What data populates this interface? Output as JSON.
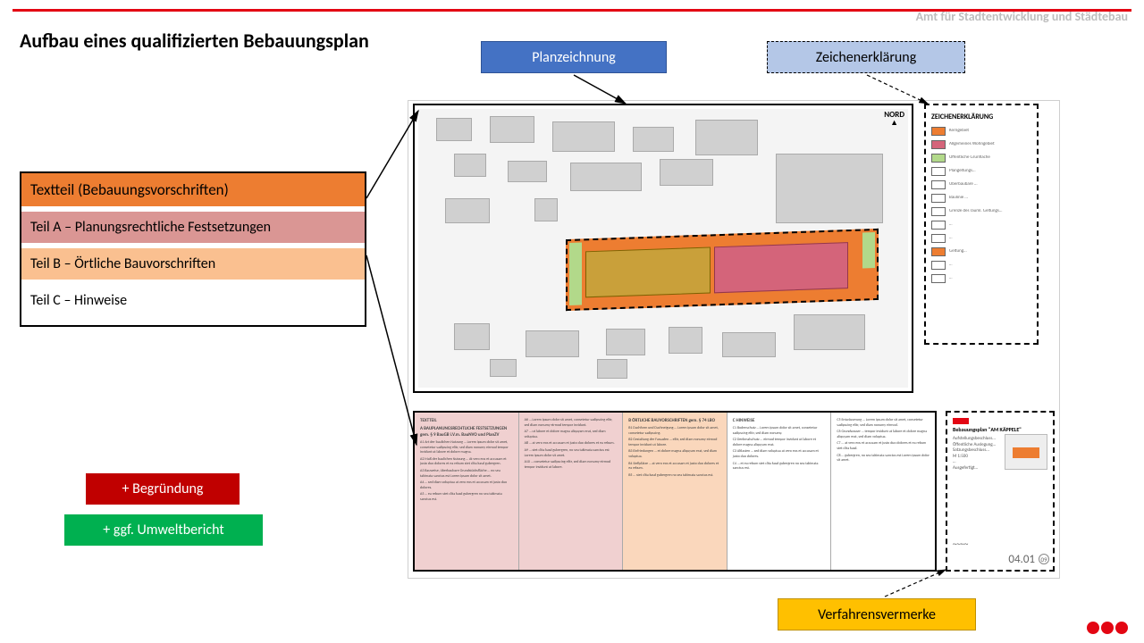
{
  "header": {
    "org": "Amt für Stadtentwicklung und Städtebau",
    "title": "Aufbau eines qualifizierten Bebauungsplan",
    "top_bar_color": "#e30613",
    "header_text_color": "#bdbdbd"
  },
  "labels": {
    "planzeichnung": {
      "text": "Planzeichnung",
      "bg": "#4472c4",
      "fg": "#ffffff",
      "border": "solid"
    },
    "zeichenerkl": {
      "text": "Zeichenerklärung",
      "bg": "#b4c7e7",
      "fg": "#000000",
      "border": "dashed"
    },
    "verfahren": {
      "text": "Verfahrensvermerke",
      "bg": "#ffc000",
      "fg": "#000000",
      "border": "solid"
    }
  },
  "textteil": {
    "heading": "Textteil (Bebauungsvorschriften)",
    "rows": [
      {
        "text": "Teil A – Planungsrechtliche Festsetzungen",
        "bg": "#da9694"
      },
      {
        "text": "Teil B – Örtliche Bauvorschriften",
        "bg": "#fac090"
      },
      {
        "text": "Teil C – Hinweise",
        "bg": "#ffffff"
      }
    ],
    "heading_bg": "#ed7d31"
  },
  "tags": {
    "red": {
      "text": "+ Begründung",
      "bg": "#c00000"
    },
    "green": {
      "text": "+ ggf. Umweltbericht",
      "bg": "#00b050"
    }
  },
  "map": {
    "nord_label": "NORD",
    "plan_area_color": "#ed7d31",
    "inner_left_color": "#c9a03a",
    "inner_right_color": "#d4647a",
    "green_color": "#b2d98a",
    "bg": "#f4f4f4",
    "building_color": "#d0d0d0"
  },
  "legend": {
    "title": "ZEICHENERKLÄRUNG",
    "items": [
      {
        "color": "#ed7d31",
        "label": "Kerngebiet"
      },
      {
        "color": "#d4647a",
        "label": "Allgemeines Wohngebiet"
      },
      {
        "color": "#b2d98a",
        "label": "Öffentliche Grünfläche"
      },
      {
        "color": "#ffffff",
        "label": "Plangeltungs…"
      },
      {
        "color": "#ffffff",
        "label": "Überbaubare …"
      },
      {
        "color": "#ffffff",
        "label": "Baulinie …"
      },
      {
        "color": "#ffffff",
        "label": "Grenze des räuml. Geltungs…"
      },
      {
        "color": "#ffffff",
        "label": "…"
      },
      {
        "color": "#ffffff",
        "label": "…"
      },
      {
        "color": "#ed7d31",
        "label": "Geltung…"
      },
      {
        "color": "#ffffff",
        "label": "…"
      },
      {
        "color": "#ffffff",
        "label": "…"
      }
    ]
  },
  "columns": {
    "a": {
      "title": "TEXTTEIL",
      "heading": "A   BAUPLANUNGSRECHTLICHE FESTSETZUNGEN gem. § 9 BauGB i.V.m. BauNVO und PlanZV"
    },
    "b": {
      "heading": ""
    },
    "c": {
      "heading": "B   ÖRTLICHE BAUVORSCHRIFTEN gem. § 74 LBO"
    },
    "d": {
      "heading": "C   HINWEISE"
    },
    "e": {
      "heading": ""
    }
  },
  "procedure": {
    "plan_title": "Bebauungsplan \"AM KÄPPELE\"",
    "number": "04.01",
    "circle": "09"
  },
  "arrows": {
    "color": "#000000",
    "paths": [
      {
        "from": [
          642,
          84
        ],
        "to": [
          700,
          118
        ]
      },
      {
        "from": [
          970,
          84
        ],
        "to": [
          1038,
          118
        ]
      },
      {
        "from": [
          410,
          222
        ],
        "to": [
          470,
          120
        ]
      },
      {
        "from": [
          410,
          286
        ],
        "to": [
          468,
          500
        ]
      },
      {
        "from": [
          990,
          668
        ],
        "to": [
          1060,
          640
        ]
      }
    ],
    "dashed_paths": [
      {
        "from": [
          970,
          84
        ],
        "to": [
          1038,
          118
        ]
      },
      {
        "from": [
          990,
          668
        ],
        "to": [
          1060,
          640
        ]
      }
    ]
  }
}
